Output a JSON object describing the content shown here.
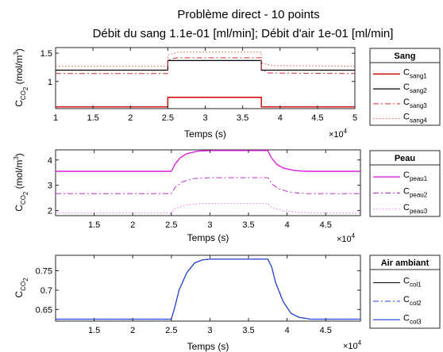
{
  "figure": {
    "title_line1": "Problème direct - 10 points",
    "title_line2": "Débit du sang 1.1e-01 [ml/min]; Débit d'air 1e-01 [ml/min]"
  },
  "chart_data": [
    {
      "type": "line",
      "xlabel": "Temps (s)",
      "ylabel": "C",
      "ylabel_sub": "CO",
      "ylabel_subsub": "2",
      "ylabel_unit": " (mol/m",
      "ylabel_sup": "3",
      "ylabel_close": ")",
      "x_exponent_base": "×10",
      "x_exponent": "4",
      "xlim": [
        1,
        5
      ],
      "ylim": [
        0.52,
        1.6
      ],
      "xticks": [
        1,
        1.5,
        2,
        2.5,
        3,
        3.5,
        4,
        4.5,
        5
      ],
      "yticks": [
        1,
        1.5
      ],
      "xtick_labels": [
        "1",
        "1.5",
        "2",
        "2.5",
        "3",
        "3.5",
        "4",
        "4.5",
        "5"
      ],
      "ytick_labels": [
        "1",
        "1.5"
      ],
      "legend": {
        "title": "Sang",
        "placement": "right"
      },
      "series": [
        {
          "name": "C",
          "sub": "sang1",
          "color": "#cc0000",
          "style": "solid",
          "width": 1.4,
          "x": [
            1,
            2.5,
            2.5,
            3.75,
            3.75,
            5
          ],
          "y": [
            0.55,
            0.55,
            0.72,
            0.72,
            0.55,
            0.55
          ]
        },
        {
          "name": "C",
          "sub": "sang2",
          "color": "#000000",
          "style": "solid",
          "width": 1.2,
          "x": [
            1,
            2.5,
            2.5,
            3.75,
            3.75,
            5
          ],
          "y": [
            1.2,
            1.2,
            1.37,
            1.37,
            1.2,
            1.2
          ]
        },
        {
          "name": "C",
          "sub": "sang3",
          "color": "#cc3333",
          "style": "dashdot",
          "width": 1.0,
          "x": [
            1,
            2.5,
            2.5,
            2.62,
            3.75,
            3.75,
            3.85,
            5
          ],
          "y": [
            1.14,
            1.14,
            1.38,
            1.42,
            1.42,
            1.22,
            1.15,
            1.14
          ]
        },
        {
          "name": "C",
          "sub": "sang4",
          "color": "#ee5555",
          "style": "dotted",
          "width": 1.0,
          "x": [
            1,
            2.5,
            2.5,
            2.65,
            3.75,
            3.75,
            3.9,
            5
          ],
          "y": [
            1.27,
            1.27,
            1.47,
            1.52,
            1.52,
            1.33,
            1.28,
            1.27
          ]
        }
      ]
    },
    {
      "type": "line",
      "xlabel": "Temps (s)",
      "ylabel": "C",
      "ylabel_sub": "CO",
      "ylabel_subsub": "2",
      "ylabel_unit": " (mol/m",
      "ylabel_sup": "3",
      "ylabel_close": ")",
      "x_exponent_base": "×10",
      "x_exponent": "4",
      "xlim": [
        1,
        4.95
      ],
      "ylim": [
        1.8,
        4.4
      ],
      "xticks": [
        1.5,
        2,
        2.5,
        3,
        3.5,
        4,
        4.5
      ],
      "yticks": [
        2,
        3,
        4
      ],
      "xtick_labels": [
        "1.5",
        "2",
        "2.5",
        "3",
        "3.5",
        "4",
        "4.5"
      ],
      "ytick_labels": [
        "2",
        "3",
        "4"
      ],
      "legend": {
        "title": "Peau",
        "placement": "right"
      },
      "series": [
        {
          "name": "C",
          "sub": "peau1",
          "color": "#dd22dd",
          "style": "solid",
          "width": 1.4,
          "x": [
            1,
            2.5,
            2.55,
            2.62,
            2.7,
            2.85,
            3.0,
            3.75,
            3.8,
            3.87,
            3.95,
            4.1,
            4.25,
            4.95
          ],
          "y": [
            3.55,
            3.55,
            3.85,
            4.1,
            4.25,
            4.35,
            4.37,
            4.37,
            4.07,
            3.82,
            3.68,
            3.58,
            3.55,
            3.55
          ]
        },
        {
          "name": "C",
          "sub": "peau2",
          "color": "#bb33cc",
          "style": "dashdot",
          "width": 1.0,
          "x": [
            1,
            2.5,
            2.55,
            2.65,
            2.8,
            3.0,
            3.75,
            3.8,
            3.9,
            4.05,
            4.25,
            4.95
          ],
          "y": [
            2.67,
            2.67,
            2.92,
            3.15,
            3.27,
            3.3,
            3.3,
            3.05,
            2.85,
            2.72,
            2.67,
            2.67
          ]
        },
        {
          "name": "C",
          "sub": "peau3",
          "color": "#ee66ee",
          "style": "dotted",
          "width": 1.0,
          "x": [
            1,
            2.5,
            2.55,
            2.7,
            2.9,
            3.1,
            3.75,
            3.8,
            3.95,
            4.15,
            4.35,
            4.95
          ],
          "y": [
            1.9,
            1.9,
            2.08,
            2.22,
            2.28,
            2.29,
            2.29,
            2.12,
            1.99,
            1.93,
            1.9,
            1.9
          ]
        }
      ]
    },
    {
      "type": "line",
      "xlabel": "Temps (s)",
      "ylabel": "C",
      "ylabel_sub": "CO",
      "ylabel_subsub": "2",
      "ylabel_unit": "",
      "ylabel_sup": "",
      "ylabel_close": "",
      "x_exponent_base": "×10",
      "x_exponent": "4",
      "xlim": [
        1,
        4.95
      ],
      "ylim": [
        0.62,
        0.79
      ],
      "xticks": [
        1.5,
        2,
        2.5,
        3,
        3.5,
        4,
        4.5
      ],
      "yticks": [
        0.65,
        0.7,
        0.75
      ],
      "xtick_labels": [
        "1.5",
        "2",
        "2.5",
        "3",
        "3.5",
        "4",
        "4.5"
      ],
      "ytick_labels": [
        "0.65",
        "0.7",
        "0.75"
      ],
      "legend": {
        "title": "Air ambiant",
        "placement": "right"
      },
      "series": [
        {
          "name": "C",
          "sub": "col1",
          "color": "#000000",
          "style": "solid",
          "width": 1.0,
          "x": [
            1,
            2.5,
            2.55,
            2.6,
            2.7,
            2.8,
            2.9,
            3.0,
            3.75,
            3.8,
            3.85,
            3.95,
            4.05,
            4.15,
            4.3,
            4.95
          ],
          "y": [
            0.625,
            0.625,
            0.66,
            0.7,
            0.745,
            0.77,
            0.778,
            0.78,
            0.78,
            0.76,
            0.72,
            0.67,
            0.64,
            0.63,
            0.625,
            0.625
          ]
        },
        {
          "name": "C",
          "sub": "col2",
          "color": "#1f3fdd",
          "style": "dashdot",
          "width": 1.1,
          "x": [
            1,
            2.5,
            2.55,
            2.6,
            2.7,
            2.8,
            2.9,
            3.0,
            3.75,
            3.8,
            3.85,
            3.95,
            4.05,
            4.15,
            4.3,
            4.95
          ],
          "y": [
            0.625,
            0.625,
            0.66,
            0.7,
            0.745,
            0.77,
            0.778,
            0.78,
            0.78,
            0.76,
            0.72,
            0.67,
            0.64,
            0.63,
            0.625,
            0.625
          ]
        },
        {
          "name": "C",
          "sub": "col3",
          "color": "#1f3fdd",
          "style": "solid",
          "width": 1.1,
          "x": [
            1,
            2.5,
            2.55,
            2.6,
            2.7,
            2.8,
            2.9,
            3.0,
            3.75,
            3.8,
            3.85,
            3.95,
            4.05,
            4.15,
            4.3,
            4.95
          ],
          "y": [
            0.625,
            0.625,
            0.66,
            0.7,
            0.745,
            0.77,
            0.778,
            0.78,
            0.78,
            0.76,
            0.72,
            0.67,
            0.64,
            0.63,
            0.625,
            0.625
          ]
        }
      ]
    }
  ]
}
